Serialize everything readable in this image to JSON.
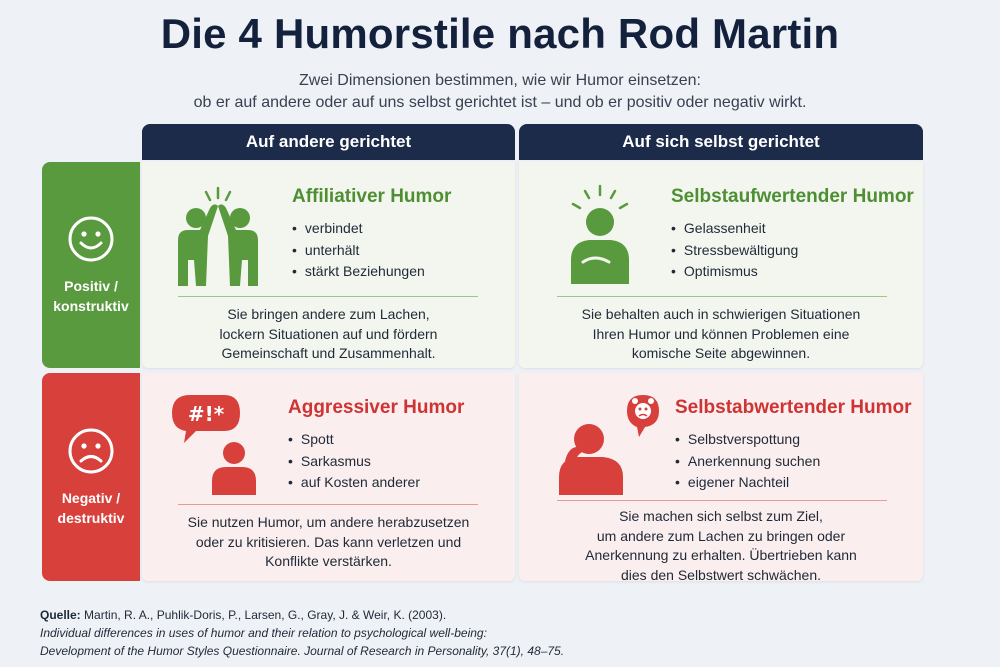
{
  "title": "Die 4 Humorstile nach Rod Martin",
  "subtitle": {
    "line1": "Zwei Dimensionen bestimmen, wie wir Humor einsetzen:",
    "line2": "ob er auf andere oder auf uns selbst gerichtet ist – und ob er positiv oder negativ wirkt."
  },
  "columns": [
    "Auf andere gerichtet",
    "Auf sich selbst gerichtet"
  ],
  "rows": [
    {
      "line1": "Positiv /",
      "line2": "konstruktiv",
      "icon": "smiley-happy-icon",
      "color": "#5a9a3f"
    },
    {
      "line1": "Negativ /",
      "line2": "destruktiv",
      "icon": "smiley-sad-icon",
      "color": "#d8403c"
    }
  ],
  "cells": {
    "affiliative": {
      "title": "Affiliativer Humor",
      "bullets": [
        "verbindet",
        "unterhält",
        "stärkt Beziehungen"
      ],
      "desc": [
        "Sie bringen andere zum Lachen,",
        "lockern Situationen auf und fördern",
        "Gemeinschaft und Zusammenhalt."
      ],
      "icon": "high-five-icon"
    },
    "selfenhancing": {
      "title": "Selbstaufwertender Humor",
      "bullets": [
        "Gelassenheit",
        "Stressbewältigung",
        "Optimismus"
      ],
      "desc": [
        "Sie behalten auch in schwierigen Situationen",
        "Ihren Humor und können Problemen eine",
        "komische Seite abgewinnen."
      ],
      "icon": "calm-person-icon"
    },
    "aggressive": {
      "title": "Aggressiver Humor",
      "bullets": [
        "Spott",
        "Sarkasmus",
        "auf Kosten anderer"
      ],
      "desc": [
        "Sie nutzen Humor, um andere herabzusetzen",
        "oder zu kritisieren. Das kann verletzen und",
        "Konflikte verstärken."
      ],
      "icon": "shouting-person-icon"
    },
    "selfdefeating": {
      "title": "Selbstabwertender Humor",
      "bullets": [
        "Selbstverspottung",
        "Anerkennung suchen",
        "eigener Nachteil"
      ],
      "desc": [
        "Sie machen sich selbst zum Ziel,",
        "um andere zum Lachen zu bringen oder",
        "Anerkennung zu erhalten. Übertrieben kann",
        "dies den Selbstwert schwächen."
      ],
      "icon": "sad-person-icon"
    }
  },
  "source": {
    "label": "Quelle:",
    "authors": "Martin, R. A., Puhlik-Doris, P., Larsen, G., Gray, J. & Weir, K. (2003).",
    "line2": "Individual differences in uses of humor and their relation to psychological well-being:",
    "line3": "Development of the Humor Styles Questionnaire. Journal of Research in Personality, 37(1), 48–75."
  },
  "colors": {
    "green": "#5a9a3f",
    "red": "#d8403c",
    "navy": "#1c2b4a"
  }
}
